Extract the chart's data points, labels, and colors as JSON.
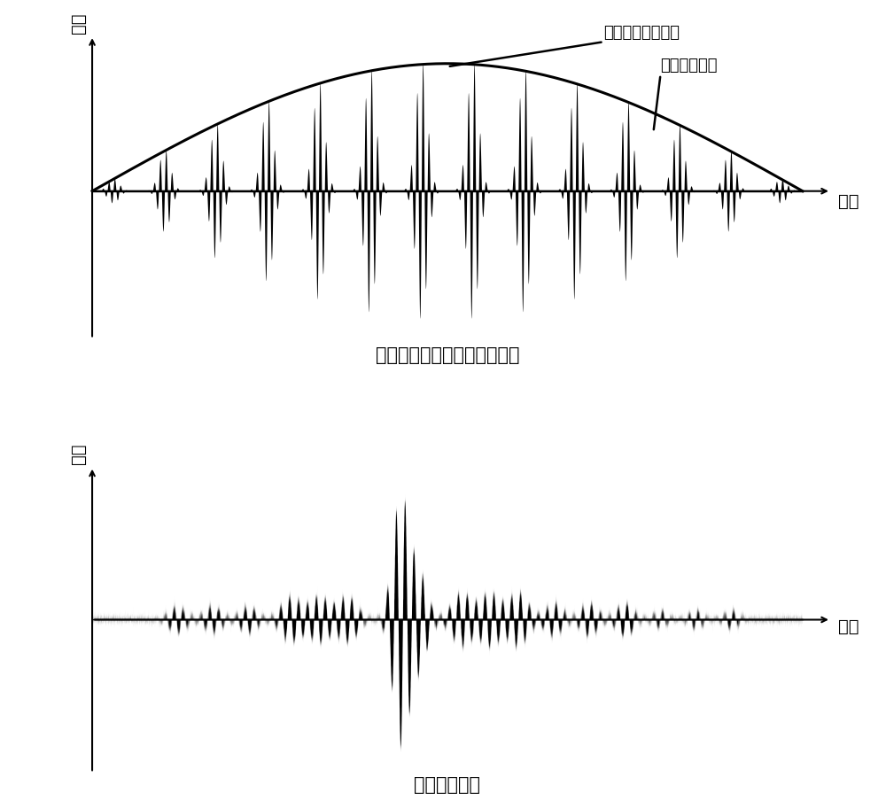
{
  "title_top": "磁致伸缩横波传感器激励信号",
  "title_bottom": "横波检测信号",
  "xlabel": "时间",
  "ylabel": "幅值",
  "annotation1": "低频正弦励磁信号",
  "annotation2": "脉冲交流信号",
  "background_color": "#ffffff",
  "figsize": [
    10.0,
    9.04
  ],
  "dpi": 100,
  "num_pulses": 14,
  "low_freq_amp": 0.82
}
